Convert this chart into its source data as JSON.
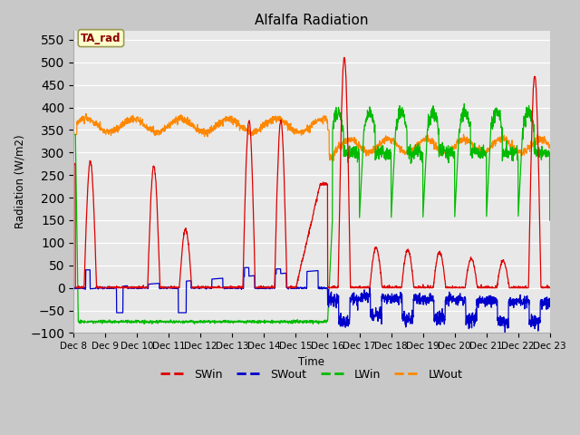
{
  "title": "Alfalfa Radiation",
  "ylabel": "Radiation (W/m2)",
  "xlabel": "Time",
  "ylim": [
    -100,
    570
  ],
  "yticks": [
    -100,
    -50,
    0,
    50,
    100,
    150,
    200,
    250,
    300,
    350,
    400,
    450,
    500,
    550
  ],
  "xtick_labels": [
    "Dec 8",
    "Dec 9",
    "Dec 10",
    "Dec 11",
    "Dec 12",
    "Dec 13",
    "Dec 14",
    "Dec 15",
    "Dec 16",
    "Dec 17",
    "Dec 18",
    "Dec 19",
    "Dec 20",
    "Dec 21",
    "Dec 22",
    "Dec 23"
  ],
  "legend_label": "TA_rad",
  "series_colors": {
    "SWin": "#dd0000",
    "SWout": "#0000cc",
    "LWin": "#00bb00",
    "LWout": "#ff8800"
  },
  "fig_facecolor": "#c8c8c8",
  "ax_facecolor": "#e8e8e8",
  "grid_color": "#ffffff"
}
